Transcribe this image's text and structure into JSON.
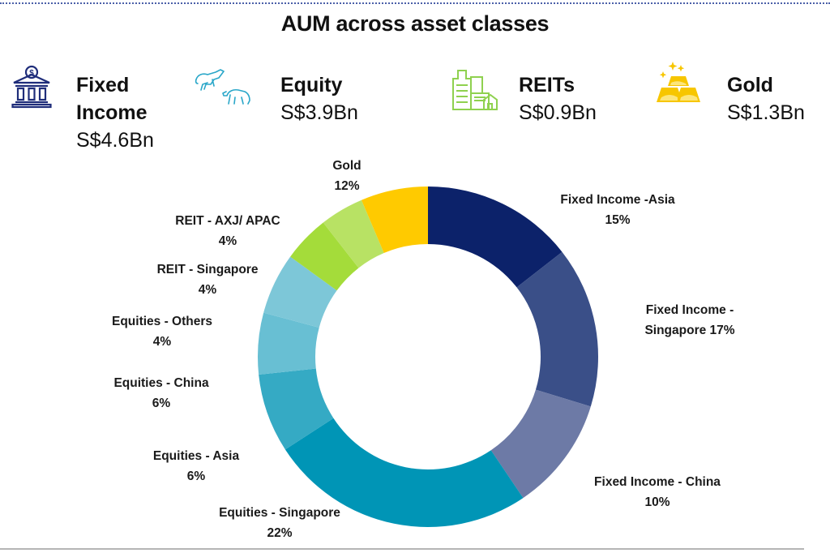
{
  "title": "AUM across asset classes",
  "summary": [
    {
      "name": "Fixed Income",
      "name_line1": "Fixed",
      "name_line2": "Income",
      "value": "S$4.6Bn",
      "icon": "bank-icon",
      "color": "#1f2d7a"
    },
    {
      "name": "Equity",
      "value": "S$3.9Bn",
      "icon": "bull-bear-icon",
      "color": "#2aa7c9"
    },
    {
      "name": "REITs",
      "value": "S$0.9Bn",
      "icon": "buildings-icon",
      "color": "#8fd14f"
    },
    {
      "name": "Gold",
      "value": "S$1.3Bn",
      "icon": "gold-bars-icon",
      "color": "#f7c600"
    }
  ],
  "chart_data": {
    "type": "pie",
    "subtype": "donut",
    "title": "AUM across asset classes",
    "categories": [
      "Fixed Income -Asia",
      "Fixed Income - Singapore",
      "Fixed Income - China",
      "Equities - Singapore",
      "Equities - Asia",
      "Equities - China",
      "Equities - Others",
      "REIT - Singapore",
      "REIT - AXJ/ APAC",
      "Gold"
    ],
    "values": [
      15,
      17,
      10,
      22,
      6,
      6,
      4,
      4,
      4,
      12
    ],
    "unit": "%",
    "colors": [
      "#0c226a",
      "#3a4f88",
      "#6d7aa6",
      "#0095b6",
      "#35aac4",
      "#68bfd3",
      "#7dc7d8",
      "#a4dc3a",
      "#b8e264",
      "#ffca00"
    ],
    "labels": [
      {
        "line1": "Fixed Income -Asia",
        "line2": "15%"
      },
      {
        "line1": "Fixed Income -",
        "line2": "Singapore 17%"
      },
      {
        "line1": "Fixed Income - China",
        "line2": "10%"
      },
      {
        "line1": "Equities - Singapore",
        "line2": "22%"
      },
      {
        "line1": "Equities - Asia",
        "line2": "6%"
      },
      {
        "line1": "Equities - China",
        "line2": "6%"
      },
      {
        "line1": "Equities - Others",
        "line2": "4%"
      },
      {
        "line1": "REIT - Singapore",
        "line2": "4%"
      },
      {
        "line1": "REIT - AXJ/ APAC",
        "line2": "4%"
      },
      {
        "line1": "Gold",
        "line2": "12%"
      }
    ],
    "start_angle_deg": 0,
    "direction": "clockwise",
    "drawn_boundaries_deg": [
      0,
      52,
      107,
      146,
      237,
      264,
      285,
      306,
      322,
      337,
      360
    ],
    "legend": "none (direct labels)"
  }
}
